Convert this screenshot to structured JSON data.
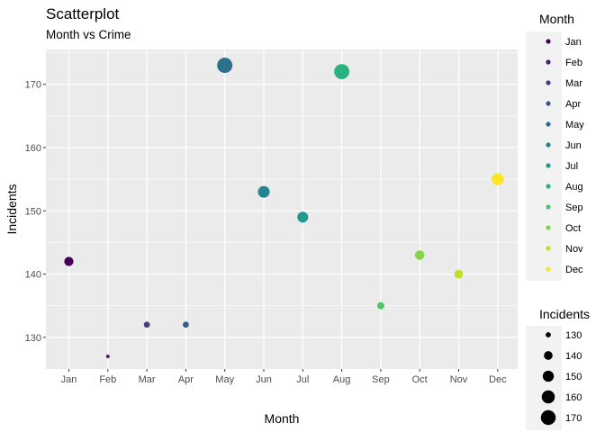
{
  "chart_data": {
    "type": "scatter",
    "title": "Scatterplot",
    "subtitle": "Month vs Crime",
    "xlabel": "Month",
    "ylabel": "Incidents",
    "categories": [
      "Jan",
      "Feb",
      "Mar",
      "Apr",
      "May",
      "Jun",
      "Jul",
      "Aug",
      "Sep",
      "Oct",
      "Nov",
      "Dec"
    ],
    "values": [
      142,
      127,
      132,
      132,
      173,
      153,
      149,
      172,
      135,
      143,
      140,
      155
    ],
    "colors": [
      "#440154",
      "#482173",
      "#433E85",
      "#38598C",
      "#2D708E",
      "#25858E",
      "#1E9B8A",
      "#2BB07F",
      "#51C56A",
      "#85D54A",
      "#C2DF23",
      "#FDE725"
    ],
    "ylim": [
      125,
      175.5
    ],
    "yticks": [
      130,
      140,
      150,
      160,
      170
    ],
    "grid": true,
    "background": "#EBEBEB",
    "legend_placement": "right",
    "color_legend": {
      "title": "Month",
      "entries": [
        "Jan",
        "Feb",
        "Mar",
        "Apr",
        "May",
        "Jun",
        "Jul",
        "Aug",
        "Sep",
        "Oct",
        "Nov",
        "Dec"
      ]
    },
    "size_legend": {
      "title": "Incidents",
      "entries": [
        130,
        140,
        150,
        160,
        170
      ]
    }
  }
}
